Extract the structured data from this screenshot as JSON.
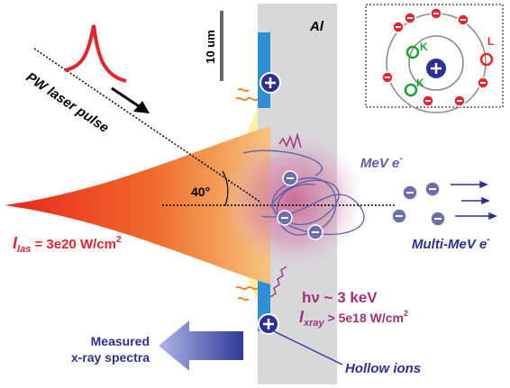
{
  "labels": {
    "scale_bar": "10 um",
    "material": "Al",
    "laser": "PW laser pulse",
    "angle": "40°",
    "mev_electrons": {
      "base": "MeV e",
      "sup": "-"
    },
    "multi_mev_electrons": {
      "base": "Multi-MeV e",
      "sup": "-"
    },
    "laser_intensity": {
      "symbol": "I",
      "sub": "las",
      "rest": " = 3e20 W/cm",
      "sup": "2"
    },
    "photon_energy": "hν ~ 3 keV",
    "xray_intensity": {
      "symbol": "I",
      "sub": "xray",
      "rest": " > 5e18 W/cm",
      "sup": "2"
    },
    "measured": [
      "Measured",
      "x-ray spectra"
    ],
    "hollow_ions": "Hollow ions",
    "atom": {
      "k_shell": [
        "K",
        "K"
      ],
      "l_shell": "L"
    }
  }
}
